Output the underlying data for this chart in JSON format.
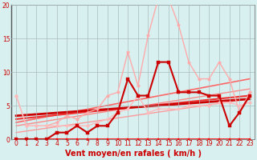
{
  "bg_color": "#d8f0f0",
  "grid_color": "#aabbbb",
  "xlim": [
    -0.5,
    23.5
  ],
  "ylim": [
    0,
    20
  ],
  "yticks": [
    0,
    5,
    10,
    15,
    20
  ],
  "xticks": [
    0,
    1,
    2,
    3,
    4,
    5,
    6,
    7,
    8,
    9,
    10,
    11,
    12,
    13,
    14,
    15,
    16,
    17,
    18,
    19,
    20,
    21,
    22,
    23
  ],
  "xlabel": "Vent moyen/en rafales ( km/h )",
  "xlabel_color": "#cc0000",
  "xlabel_fontsize": 7,
  "tick_label_color": "#cc0000",
  "tick_label_fontsize": 5.5,
  "series": [
    {
      "x": [
        0,
        1,
        2,
        3,
        4,
        5,
        6,
        7,
        8,
        9,
        10,
        11,
        12,
        13,
        14,
        15,
        16,
        17,
        18,
        19,
        20,
        21,
        22,
        23
      ],
      "y": [
        0,
        0,
        0,
        0,
        0,
        0,
        0,
        0,
        0,
        0,
        0,
        0,
        0,
        0,
        0,
        0,
        0,
        0,
        0,
        0,
        0,
        0,
        0,
        0
      ],
      "color": "#ff0000",
      "linewidth": 1.2,
      "marker": "s",
      "markersize": 2.0,
      "zorder": 3
    },
    {
      "x": [
        0,
        23
      ],
      "y": [
        1.0,
        6.0
      ],
      "color": "#ff9999",
      "linewidth": 1.0,
      "marker": "None",
      "markersize": 0,
      "zorder": 2
    },
    {
      "x": [
        0,
        23
      ],
      "y": [
        2.0,
        7.5
      ],
      "color": "#ff8888",
      "linewidth": 1.0,
      "marker": "None",
      "markersize": 0,
      "zorder": 2
    },
    {
      "x": [
        0,
        23
      ],
      "y": [
        2.5,
        9.0
      ],
      "color": "#ff6666",
      "linewidth": 1.2,
      "marker": "None",
      "markersize": 0,
      "zorder": 2
    },
    {
      "x": [
        0,
        23
      ],
      "y": [
        3.0,
        6.5
      ],
      "color": "#ee3333",
      "linewidth": 1.5,
      "marker": "None",
      "markersize": 0,
      "zorder": 2
    },
    {
      "x": [
        0,
        23
      ],
      "y": [
        3.5,
        6.0
      ],
      "color": "#cc0000",
      "linewidth": 2.0,
      "marker": "None",
      "markersize": 0,
      "zorder": 2
    },
    {
      "x": [
        0,
        1,
        2,
        3,
        4,
        5,
        6,
        7,
        8,
        9,
        10,
        11,
        12,
        13,
        14,
        15,
        16,
        17,
        18,
        19,
        20,
        21,
        22,
        23
      ],
      "y": [
        6.5,
        2.0,
        2.0,
        2.0,
        2.5,
        3.5,
        3.0,
        4.0,
        4.5,
        6.5,
        7.0,
        13.0,
        8.0,
        15.5,
        21.0,
        21.0,
        17.0,
        11.5,
        9.0,
        9.0,
        11.5,
        9.0,
        4.0,
        7.0
      ],
      "color": "#ffaaaa",
      "linewidth": 1.0,
      "marker": "o",
      "markersize": 2.5,
      "zorder": 4
    },
    {
      "x": [
        0,
        1,
        2,
        3,
        4,
        5,
        6,
        7,
        8,
        9,
        10,
        11,
        12,
        13,
        14,
        15,
        16,
        17,
        18,
        19,
        20,
        21,
        22,
        23
      ],
      "y": [
        6.5,
        2.0,
        2.0,
        2.0,
        2.0,
        2.0,
        2.0,
        2.0,
        2.5,
        3.0,
        4.0,
        4.5,
        6.5,
        4.0,
        4.5,
        4.5,
        4.5,
        5.0,
        5.0,
        5.0,
        5.5,
        5.5,
        5.0,
        5.5
      ],
      "color": "#ffbbbb",
      "linewidth": 1.0,
      "marker": "o",
      "markersize": 2.5,
      "zorder": 4
    },
    {
      "x": [
        0,
        1,
        2,
        3,
        4,
        5,
        6,
        7,
        8,
        9,
        10,
        11,
        12,
        13,
        14,
        15,
        16,
        17,
        18,
        19,
        20,
        21,
        22,
        23
      ],
      "y": [
        0,
        0,
        0,
        0,
        1,
        1,
        2,
        1,
        2,
        2,
        4,
        9,
        6.5,
        6.5,
        11.5,
        11.5,
        7.0,
        7.0,
        7.0,
        6.5,
        6.5,
        2.0,
        4.0,
        6.5
      ],
      "color": "#cc0000",
      "linewidth": 1.5,
      "marker": "s",
      "markersize": 2.5,
      "zorder": 5
    }
  ]
}
